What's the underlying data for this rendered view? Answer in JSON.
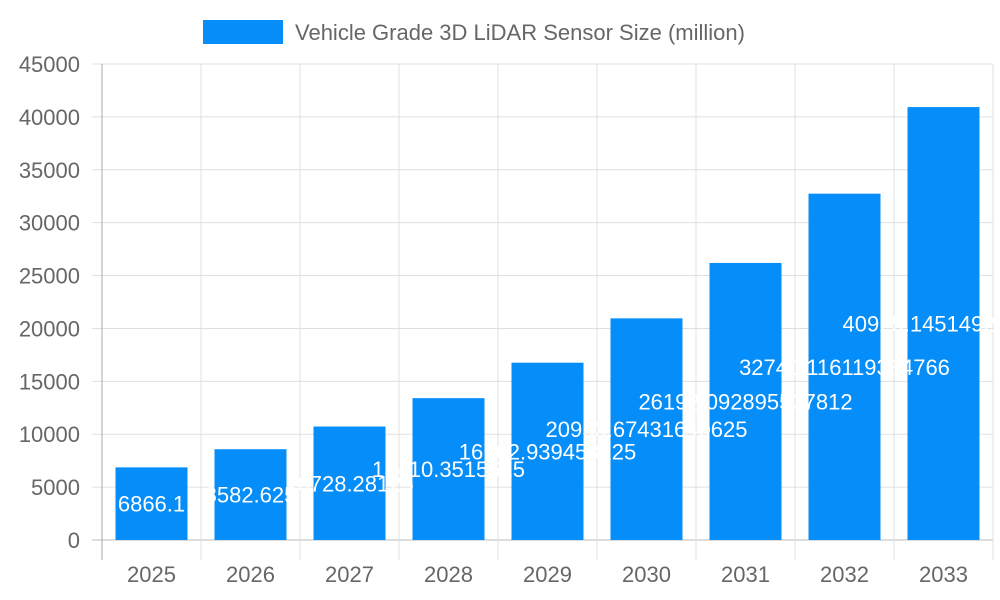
{
  "chart_data": {
    "type": "bar",
    "categories": [
      "2025",
      "2026",
      "2027",
      "2028",
      "2029",
      "2030",
      "2031",
      "2032",
      "2033"
    ],
    "series": [
      {
        "name": "Vehicle Grade 3D LiDAR Sensor Size (million)",
        "color": "#058df9",
        "values": [
          6866.1,
          8582.625,
          10728.28125,
          13410.3515625,
          16762.939453125,
          20953.67431640625,
          26192.092895507812,
          32740.116119384766,
          40925.14514923096
        ]
      }
    ],
    "ylim": [
      0,
      45000
    ],
    "yticks": [
      0,
      5000,
      10000,
      15000,
      20000,
      25000,
      30000,
      35000,
      40000,
      45000
    ],
    "grid": true,
    "legend": "top",
    "data_labels": true
  }
}
